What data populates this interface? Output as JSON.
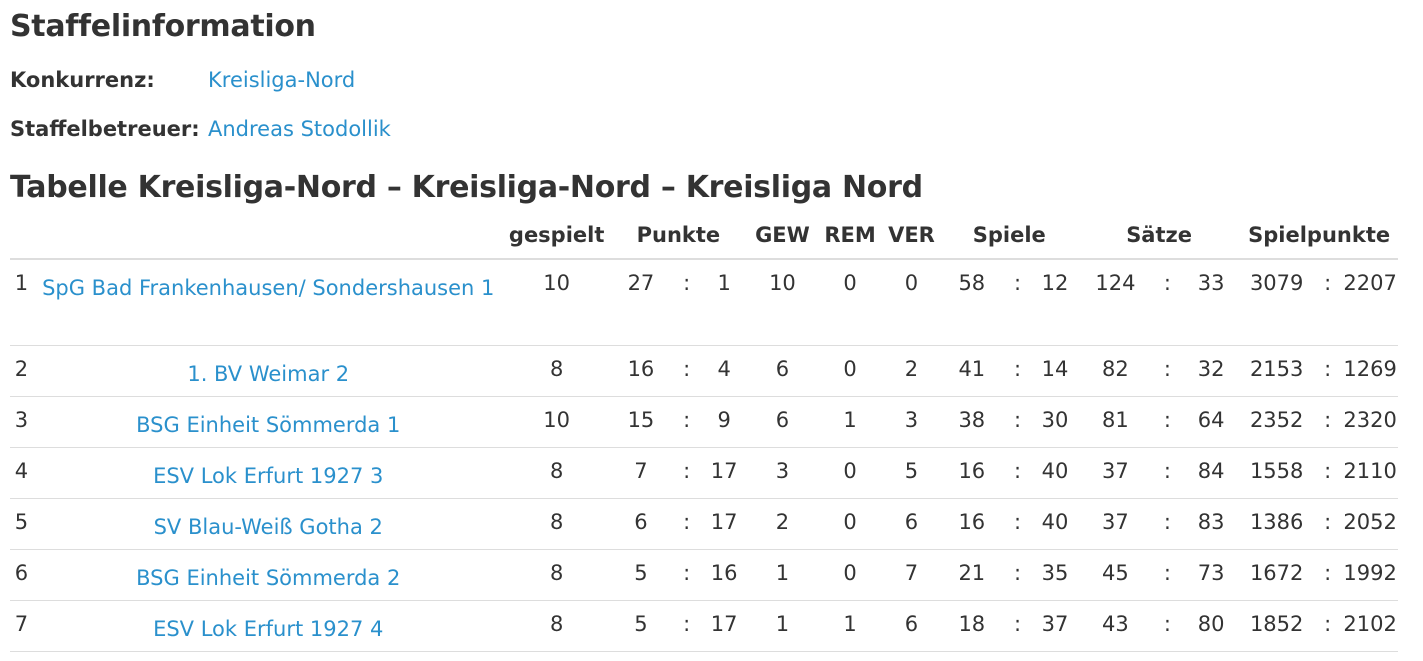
{
  "section_title": "Staffelinformation",
  "info": {
    "konkurrenz_label": "Konkurrenz:",
    "konkurrenz_value": "Kreisliga-Nord",
    "betreuer_label": "Staffelbetreuer:",
    "betreuer_value": "Andreas Stodollik"
  },
  "table_title": "Tabelle Kreisliga-Nord – Kreisliga-Nord – Kreisliga Nord",
  "columns": {
    "gespielt": "gespielt",
    "punkte": "Punkte",
    "gew": "GEW",
    "rem": "REM",
    "ver": "VER",
    "spiele": "Spiele",
    "saetze": "Sätze",
    "spielpunkte": "Spielpunkte"
  },
  "sep": ":",
  "rows": [
    {
      "pos": "1",
      "team": "SpG Bad Frankenhausen/ Sondershausen 1",
      "gespielt": "10",
      "p1": "27",
      "p2": "1",
      "gew": "10",
      "rem": "0",
      "ver": "0",
      "s1": "58",
      "s2": "12",
      "sa1": "124",
      "sa2": "33",
      "sp1": "3079",
      "sp2": "2207"
    },
    {
      "pos": "2",
      "team": "1. BV Weimar 2",
      "gespielt": "8",
      "p1": "16",
      "p2": "4",
      "gew": "6",
      "rem": "0",
      "ver": "2",
      "s1": "41",
      "s2": "14",
      "sa1": "82",
      "sa2": "32",
      "sp1": "2153",
      "sp2": "1269"
    },
    {
      "pos": "3",
      "team": "BSG Einheit Sömmerda 1",
      "gespielt": "10",
      "p1": "15",
      "p2": "9",
      "gew": "6",
      "rem": "1",
      "ver": "3",
      "s1": "38",
      "s2": "30",
      "sa1": "81",
      "sa2": "64",
      "sp1": "2352",
      "sp2": "2320"
    },
    {
      "pos": "4",
      "team": "ESV Lok Erfurt 1927 3",
      "gespielt": "8",
      "p1": "7",
      "p2": "17",
      "gew": "3",
      "rem": "0",
      "ver": "5",
      "s1": "16",
      "s2": "40",
      "sa1": "37",
      "sa2": "84",
      "sp1": "1558",
      "sp2": "2110"
    },
    {
      "pos": "5",
      "team": "SV Blau-Weiß Gotha 2",
      "gespielt": "8",
      "p1": "6",
      "p2": "17",
      "gew": "2",
      "rem": "0",
      "ver": "6",
      "s1": "16",
      "s2": "40",
      "sa1": "37",
      "sa2": "83",
      "sp1": "1386",
      "sp2": "2052"
    },
    {
      "pos": "6",
      "team": "BSG Einheit Sömmerda 2",
      "gespielt": "8",
      "p1": "5",
      "p2": "16",
      "gew": "1",
      "rem": "0",
      "ver": "7",
      "s1": "21",
      "s2": "35",
      "sa1": "45",
      "sa2": "73",
      "sp1": "1672",
      "sp2": "1992"
    },
    {
      "pos": "7",
      "team": "ESV Lok Erfurt 1927 4",
      "gespielt": "8",
      "p1": "5",
      "p2": "17",
      "gew": "1",
      "rem": "1",
      "ver": "6",
      "s1": "18",
      "s2": "37",
      "sa1": "43",
      "sa2": "80",
      "sp1": "1852",
      "sp2": "2102"
    }
  ],
  "colors": {
    "link": "#2a90cc",
    "text": "#333333",
    "border": "#dddddd"
  }
}
